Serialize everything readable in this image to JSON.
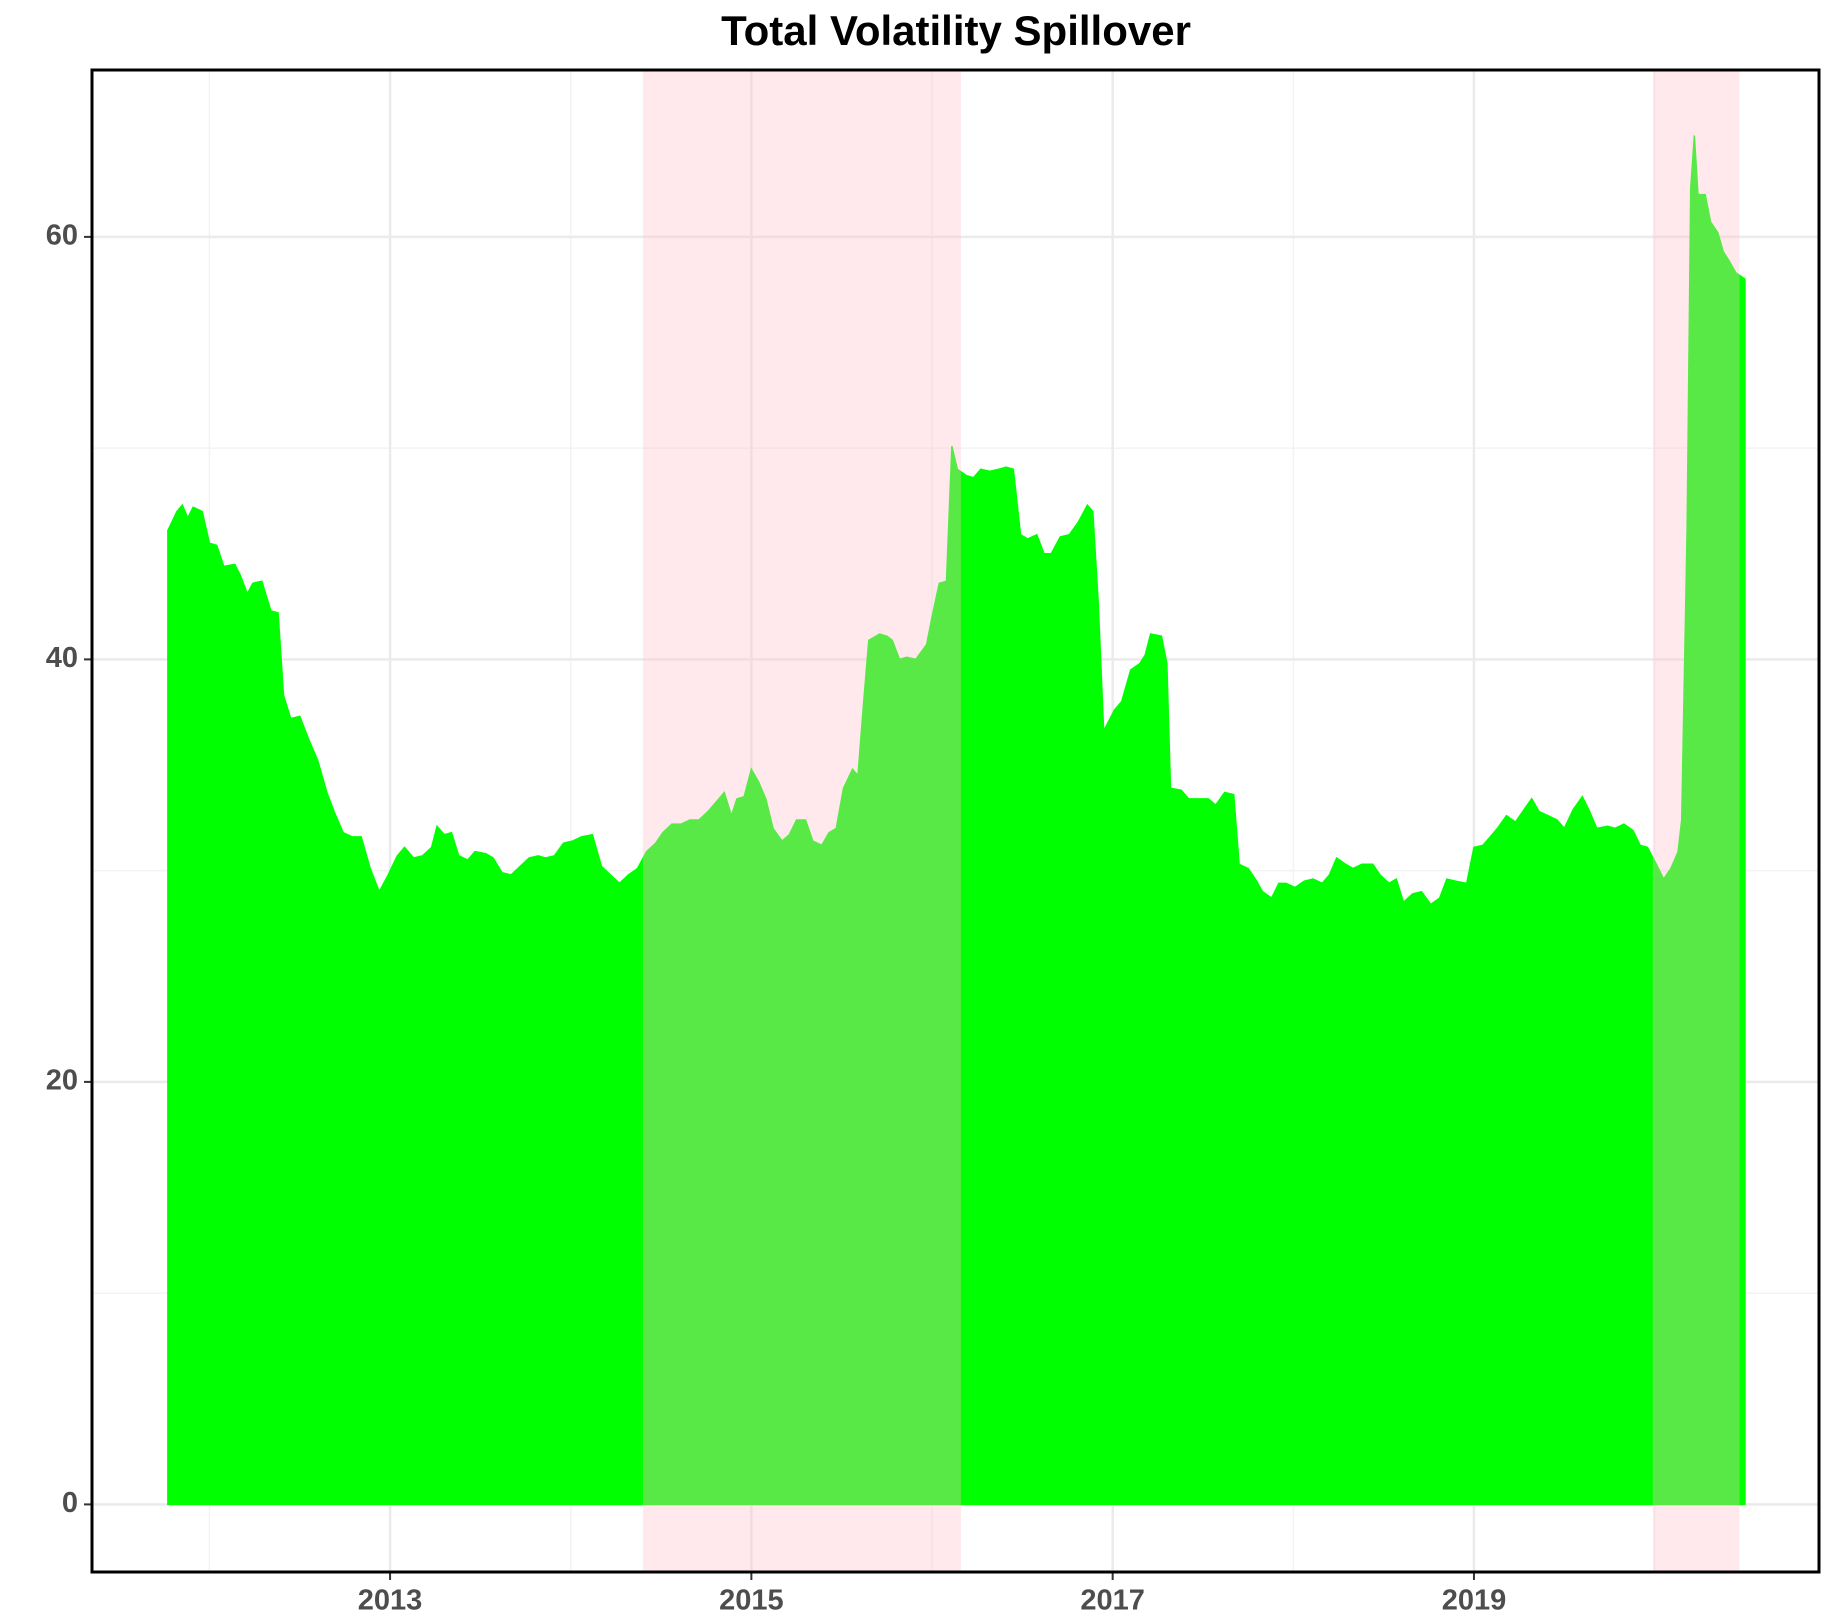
{
  "chart_data": {
    "type": "area",
    "title": "Total Volatility Spillover",
    "x": [
      2011.77,
      2011.82,
      2011.85,
      2011.88,
      2011.91,
      2011.96,
      2012.0,
      2012.04,
      2012.08,
      2012.14,
      2012.17,
      2012.21,
      2012.24,
      2012.29,
      2012.34,
      2012.38,
      2012.41,
      2012.45,
      2012.5,
      2012.55,
      2012.6,
      2012.65,
      2012.69,
      2012.74,
      2012.79,
      2012.84,
      2012.89,
      2012.94,
      2012.99,
      2013.04,
      2013.08,
      2013.13,
      2013.18,
      2013.23,
      2013.26,
      2013.3,
      2013.34,
      2013.38,
      2013.43,
      2013.47,
      2013.53,
      2013.57,
      2013.62,
      2013.67,
      2013.72,
      2013.77,
      2013.82,
      2013.86,
      2013.91,
      2013.96,
      2014.01,
      2014.06,
      2014.12,
      2014.17,
      2014.22,
      2014.27,
      2014.32,
      2014.37,
      2014.42,
      2014.47,
      2014.51,
      2014.56,
      2014.61,
      2014.66,
      2014.71,
      2014.76,
      2014.81,
      2014.85,
      2014.89,
      2014.92,
      2014.96,
      2015.0,
      2015.04,
      2015.08,
      2015.12,
      2015.17,
      2015.21,
      2015.25,
      2015.3,
      2015.34,
      2015.39,
      2015.43,
      2015.47,
      2015.51,
      2015.56,
      2015.59,
      2015.62,
      2015.65,
      2015.71,
      2015.75,
      2015.78,
      2015.82,
      2015.86,
      2015.91,
      2015.97,
      2016.0,
      2016.04,
      2016.08,
      2016.11,
      2016.14,
      2016.19,
      2016.23,
      2016.27,
      2016.32,
      2016.37,
      2016.41,
      2016.45,
      2016.49,
      2016.53,
      2016.58,
      2016.62,
      2016.66,
      2016.71,
      2016.76,
      2016.81,
      2016.86,
      2016.89,
      2016.92,
      2016.95,
      2017.01,
      2017.05,
      2017.1,
      2017.15,
      2017.18,
      2017.21,
      2017.27,
      2017.3,
      2017.32,
      2017.38,
      2017.42,
      2017.47,
      2017.53,
      2017.57,
      2017.62,
      2017.67,
      2017.7,
      2017.75,
      2017.79,
      2017.83,
      2017.88,
      2017.92,
      2017.96,
      2018.01,
      2018.06,
      2018.11,
      2018.16,
      2018.2,
      2018.24,
      2018.29,
      2018.33,
      2018.38,
      2018.44,
      2018.48,
      2018.53,
      2018.57,
      2018.61,
      2018.66,
      2018.71,
      2018.76,
      2018.81,
      2018.85,
      2018.9,
      2018.96,
      2019.0,
      2019.05,
      2019.09,
      2019.13,
      2019.18,
      2019.23,
      2019.27,
      2019.32,
      2019.36,
      2019.41,
      2019.46,
      2019.5,
      2019.55,
      2019.6,
      2019.64,
      2019.68,
      2019.74,
      2019.78,
      2019.83,
      2019.88,
      2019.92,
      2019.96,
      2020.01,
      2020.05,
      2020.09,
      2020.13,
      2020.15,
      2020.18,
      2020.2,
      2020.22,
      2020.24,
      2020.28,
      2020.31,
      2020.35,
      2020.38,
      2020.41,
      2020.45,
      2020.5
    ],
    "values": [
      46.1,
      47.0,
      47.3,
      46.7,
      47.2,
      47.0,
      45.5,
      45.4,
      44.4,
      44.5,
      44.0,
      43.1,
      43.6,
      43.7,
      42.3,
      42.2,
      38.3,
      37.2,
      37.3,
      36.2,
      35.2,
      33.7,
      32.8,
      31.8,
      31.6,
      31.6,
      30.1,
      29.0,
      29.8,
      30.7,
      31.1,
      30.6,
      30.7,
      31.1,
      32.1,
      31.7,
      31.8,
      30.7,
      30.5,
      30.9,
      30.8,
      30.6,
      29.9,
      29.8,
      30.2,
      30.6,
      30.7,
      30.6,
      30.7,
      31.3,
      31.4,
      31.6,
      31.7,
      30.2,
      29.8,
      29.4,
      29.8,
      30.1,
      30.9,
      31.3,
      31.8,
      32.2,
      32.2,
      32.4,
      32.4,
      32.8,
      33.3,
      33.7,
      32.6,
      33.4,
      33.5,
      34.8,
      34.2,
      33.4,
      32.0,
      31.4,
      31.7,
      32.4,
      32.4,
      31.4,
      31.2,
      31.8,
      32.0,
      33.9,
      34.8,
      34.5,
      37.8,
      40.9,
      41.2,
      41.1,
      40.9,
      40.0,
      40.1,
      40.0,
      40.7,
      42.0,
      43.6,
      43.7,
      50.1,
      49.0,
      48.7,
      48.6,
      49.0,
      48.9,
      49.0,
      49.1,
      49.0,
      45.9,
      45.7,
      45.9,
      45.0,
      45.0,
      45.8,
      45.9,
      46.5,
      47.3,
      47.0,
      42.7,
      36.6,
      37.6,
      38.0,
      39.5,
      39.8,
      40.2,
      41.2,
      41.1,
      39.8,
      33.9,
      33.8,
      33.4,
      33.4,
      33.4,
      33.1,
      33.7,
      33.6,
      30.3,
      30.1,
      29.6,
      29.0,
      28.7,
      29.4,
      29.4,
      29.2,
      29.5,
      29.6,
      29.4,
      29.8,
      30.6,
      30.3,
      30.1,
      30.3,
      30.3,
      29.8,
      29.4,
      29.6,
      28.5,
      28.9,
      29.0,
      28.4,
      28.7,
      29.6,
      29.5,
      29.4,
      31.1,
      31.2,
      31.6,
      32.0,
      32.6,
      32.3,
      32.8,
      33.4,
      32.8,
      32.6,
      32.4,
      32.0,
      32.9,
      33.5,
      32.8,
      32.0,
      32.1,
      32.0,
      32.2,
      31.9,
      31.2,
      31.1,
      30.3,
      29.6,
      30.1,
      30.9,
      32.4,
      46.2,
      62.3,
      64.8,
      62.0,
      62.0,
      60.7,
      60.2,
      59.3,
      58.9,
      58.3,
      58.0
    ],
    "color": "#00ff00",
    "shaded_regions": [
      [
        2014.4,
        2016.16
      ],
      [
        2019.99,
        2020.47
      ]
    ],
    "shade_color": "#ffc0cb",
    "shade_opacity": 0.35,
    "xlim": [
      2011.35,
      2020.91
    ],
    "xticks": [
      2013,
      2015,
      2017,
      2019
    ],
    "xminor": [
      2012,
      2014,
      2016,
      2018,
      2020
    ],
    "ylim": [
      -3.2,
      67.9
    ],
    "yticks": [
      0,
      20,
      40,
      60
    ],
    "yminor": [
      10,
      30,
      50
    ],
    "grid": true
  }
}
